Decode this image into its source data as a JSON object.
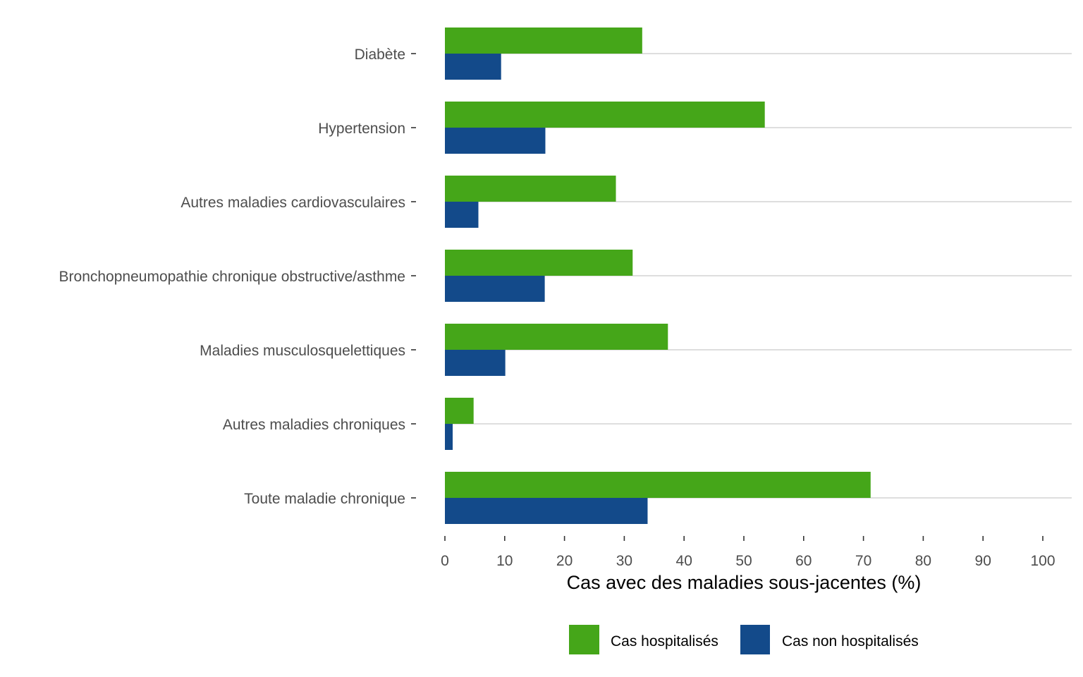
{
  "chart_data": {
    "type": "bar",
    "orientation": "horizontal",
    "categories": [
      "Diabète",
      "Hypertension",
      "Autres maladies cardiovasculaires",
      "Bronchopneumopathie chronique obstructive/asthme",
      "Maladies musculosquelettiques",
      "Autres maladies chroniques",
      "Toute maladie chronique"
    ],
    "series": [
      {
        "name": "Cas hospitalisés",
        "color": "#45a619",
        "values": [
          33,
          53.5,
          28.6,
          31.4,
          37.3,
          4.8,
          71.2
        ]
      },
      {
        "name": "Cas non hospitalisés",
        "color": "#134a8a",
        "values": [
          9.4,
          16.8,
          5.6,
          16.7,
          10.1,
          1.3,
          33.9
        ]
      }
    ],
    "xlabel": "Cas avec des maladies sous-jacentes (%)",
    "ylabel": "",
    "xlim": [
      0,
      100
    ],
    "xticks": [
      "0",
      "10",
      "20",
      "30",
      "40",
      "50",
      "60",
      "70",
      "80",
      "90",
      "100"
    ],
    "grid": "horizontal",
    "legend_position": "bottom"
  }
}
